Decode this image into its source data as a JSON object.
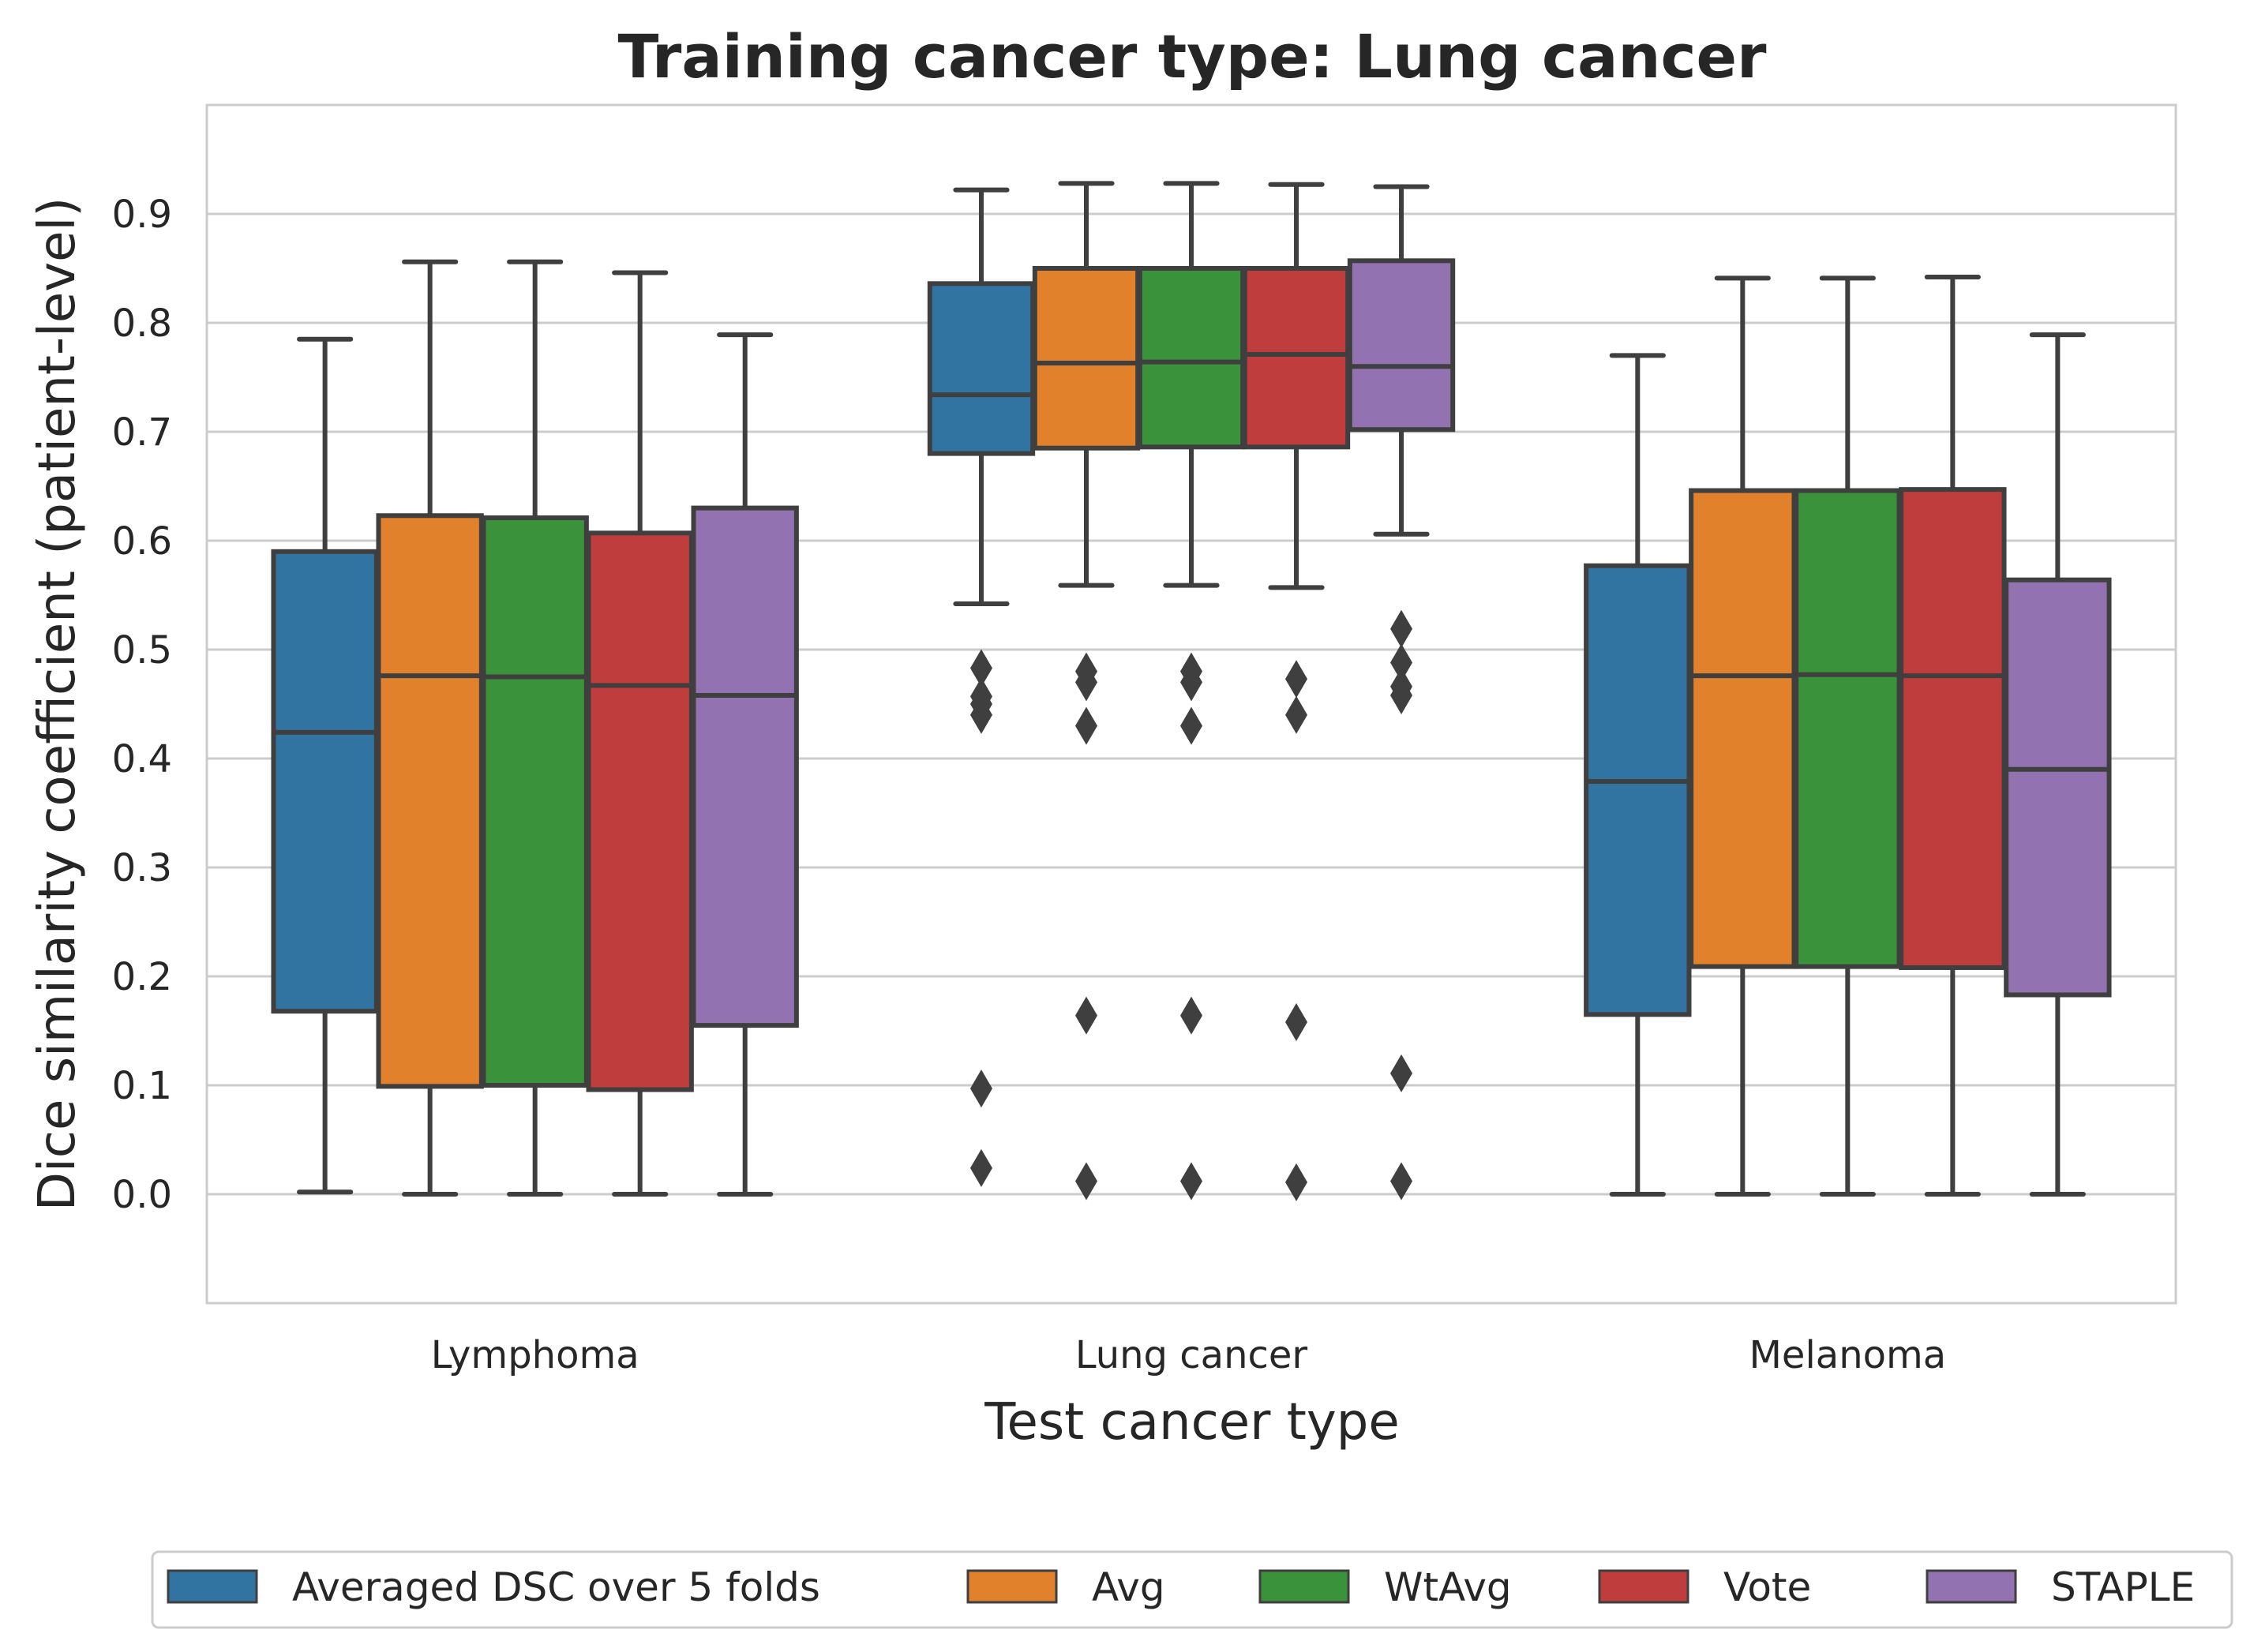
{
  "chart_data": {
    "type": "box",
    "title": "Training cancer type: Lung cancer",
    "xlabel": "Test cancer type",
    "ylabel": "Dice similarity coefficient (patient-level)",
    "ylim": [
      -0.1,
      1.0
    ],
    "yticks": [
      0.0,
      0.1,
      0.2,
      0.3,
      0.4,
      0.5,
      0.6,
      0.7,
      0.8,
      0.9
    ],
    "ytick_labels": [
      "0.0",
      "0.1",
      "0.2",
      "0.3",
      "0.4",
      "0.5",
      "0.6",
      "0.7",
      "0.8",
      "0.9"
    ],
    "grid": "horizontal",
    "legend_position": "bottom, below the chart",
    "categories": [
      "Lymphoma",
      "Lung cancer",
      "Melanoma"
    ],
    "series": [
      {
        "name": "Averaged DSC over 5 folds",
        "color": "#3274a1",
        "boxes": [
          {
            "whislo": 0.002,
            "q1": 0.168,
            "median": 0.424,
            "q3": 0.59,
            "whishi": 0.785,
            "fliers": []
          },
          {
            "whislo": 0.542,
            "q1": 0.68,
            "median": 0.734,
            "q3": 0.836,
            "whishi": 0.922,
            "fliers": [
              0.483,
              0.457,
              0.45,
              0.44,
              0.097,
              0.024
            ]
          },
          {
            "whislo": 0.0,
            "q1": 0.165,
            "median": 0.379,
            "q3": 0.577,
            "whishi": 0.77,
            "fliers": []
          }
        ]
      },
      {
        "name": "Avg",
        "color": "#e1812c",
        "boxes": [
          {
            "whislo": 0.0,
            "q1": 0.099,
            "median": 0.476,
            "q3": 0.623,
            "whishi": 0.856,
            "fliers": []
          },
          {
            "whislo": 0.559,
            "q1": 0.685,
            "median": 0.763,
            "q3": 0.85,
            "whishi": 0.928,
            "fliers": [
              0.48,
              0.47,
              0.43,
              0.164,
              0.012
            ]
          },
          {
            "whislo": 0.0,
            "q1": 0.209,
            "median": 0.476,
            "q3": 0.646,
            "whishi": 0.841,
            "fliers": []
          }
        ]
      },
      {
        "name": "WtAvg",
        "color": "#3a923a",
        "boxes": [
          {
            "whislo": 0.0,
            "q1": 0.1,
            "median": 0.475,
            "q3": 0.621,
            "whishi": 0.856,
            "fliers": []
          },
          {
            "whislo": 0.559,
            "q1": 0.686,
            "median": 0.764,
            "q3": 0.85,
            "whishi": 0.928,
            "fliers": [
              0.48,
              0.47,
              0.43,
              0.164,
              0.012
            ]
          },
          {
            "whislo": 0.0,
            "q1": 0.209,
            "median": 0.477,
            "q3": 0.646,
            "whishi": 0.841,
            "fliers": []
          }
        ]
      },
      {
        "name": "Vote",
        "color": "#c03d3e",
        "boxes": [
          {
            "whislo": 0.0,
            "q1": 0.096,
            "median": 0.467,
            "q3": 0.607,
            "whishi": 0.846,
            "fliers": []
          },
          {
            "whislo": 0.557,
            "q1": 0.686,
            "median": 0.771,
            "q3": 0.85,
            "whishi": 0.927,
            "fliers": [
              0.473,
              0.44,
              0.158,
              0.011
            ]
          },
          {
            "whislo": 0.0,
            "q1": 0.208,
            "median": 0.476,
            "q3": 0.647,
            "whishi": 0.842,
            "fliers": []
          }
        ]
      },
      {
        "name": "STAPLE",
        "color": "#9372b2",
        "boxes": [
          {
            "whislo": 0.0,
            "q1": 0.155,
            "median": 0.458,
            "q3": 0.63,
            "whishi": 0.789,
            "fliers": []
          },
          {
            "whislo": 0.606,
            "q1": 0.702,
            "median": 0.76,
            "q3": 0.857,
            "whishi": 0.925,
            "fliers": [
              0.519,
              0.488,
              0.466,
              0.458,
              0.111,
              0.012
            ]
          },
          {
            "whislo": 0.0,
            "q1": 0.183,
            "median": 0.39,
            "q3": 0.564,
            "whishi": 0.789,
            "fliers": []
          }
        ]
      }
    ]
  }
}
